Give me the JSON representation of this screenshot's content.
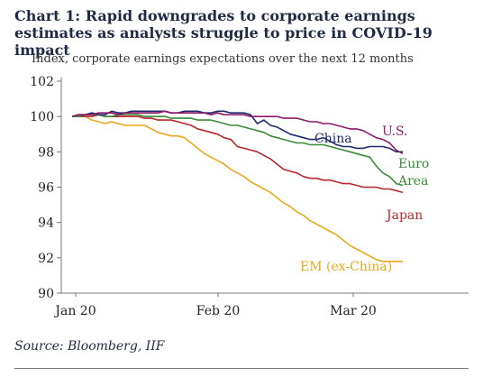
{
  "chart_data": {
    "type": "line",
    "title": "Chart 1: Rapid downgrades to corporate earnings estimates as analysts struggle to price in COVID-19 impact",
    "subtitle": "Index, corporate earnings expectations over the next 12 months",
    "source": "Source: Bloomberg, IIF",
    "ylim": [
      90,
      102
    ],
    "yticks": [
      90,
      92,
      94,
      96,
      98,
      100,
      102
    ],
    "xtick_labels": [
      "Jan 20",
      "Feb 20",
      "Mar 20"
    ],
    "grid": false,
    "x": [
      0,
      2,
      4,
      6,
      8,
      10,
      12,
      14,
      16,
      18,
      20,
      22,
      24,
      26,
      28,
      30,
      32,
      34,
      36,
      38,
      40,
      42,
      44,
      46,
      48,
      50,
      52,
      54,
      56,
      58,
      60,
      62,
      64,
      66,
      68,
      70,
      72,
      74,
      76,
      78,
      80,
      82,
      84,
      86,
      88,
      90,
      92,
      94,
      96,
      98,
      100
    ],
    "series": [
      {
        "name": "U.S.",
        "color": "#8b1a6b",
        "label": [
          "U.S."
        ],
        "values": [
          100,
          100.1,
          100.1,
          100.1,
          100.2,
          100.2,
          100.2,
          100.1,
          100.2,
          100.2,
          100.2,
          100.2,
          100.2,
          100.2,
          100.3,
          100.2,
          100.2,
          100.2,
          100.2,
          100.2,
          100.2,
          100.1,
          100.2,
          100.1,
          100.1,
          100.1,
          100.1,
          100.0,
          100.0,
          100.0,
          100.0,
          100.0,
          99.9,
          99.9,
          99.9,
          99.8,
          99.7,
          99.7,
          99.6,
          99.6,
          99.5,
          99.4,
          99.3,
          99.3,
          99.2,
          99.0,
          98.8,
          98.7,
          98.5,
          98.1,
          97.9
        ]
      },
      {
        "name": "China",
        "color": "#1f2a6b",
        "label": [
          "China"
        ],
        "values": [
          100,
          100.1,
          100.1,
          100.2,
          100.1,
          100.1,
          100.3,
          100.2,
          100.2,
          100.3,
          100.3,
          100.3,
          100.3,
          100.3,
          100.3,
          100.2,
          100.2,
          100.3,
          100.3,
          100.3,
          100.2,
          100.2,
          100.3,
          100.3,
          100.2,
          100.2,
          100.2,
          100.1,
          99.6,
          99.8,
          99.5,
          99.4,
          99.2,
          99.0,
          98.9,
          98.8,
          98.7,
          98.7,
          98.8,
          98.6,
          98.4,
          98.3,
          98.3,
          98.2,
          98.2,
          98.3,
          98.3,
          98.3,
          98.2,
          98.0,
          98.0
        ]
      },
      {
        "name": "Euro Area",
        "color": "#3a8a3a",
        "label": [
          "Euro",
          "Area"
        ],
        "values": [
          100,
          100.0,
          100.1,
          100.1,
          100.1,
          100.0,
          100.0,
          100.1,
          100.1,
          100.1,
          100.1,
          100.0,
          100.0,
          100.0,
          100.0,
          99.9,
          99.9,
          99.9,
          99.9,
          99.8,
          99.8,
          99.8,
          99.7,
          99.6,
          99.5,
          99.5,
          99.4,
          99.3,
          99.2,
          99.1,
          98.9,
          98.8,
          98.7,
          98.6,
          98.5,
          98.5,
          98.4,
          98.4,
          98.4,
          98.3,
          98.2,
          98.1,
          98.0,
          97.9,
          97.8,
          97.7,
          97.2,
          96.8,
          96.6,
          96.2,
          96.1
        ]
      },
      {
        "name": "Japan",
        "color": "#b8252a",
        "label": [
          "Japan"
        ],
        "values": [
          100,
          100.0,
          100.0,
          100.0,
          100.1,
          100.0,
          100.0,
          100.0,
          100.0,
          100.0,
          100.0,
          99.9,
          99.9,
          99.8,
          99.8,
          99.8,
          99.7,
          99.6,
          99.5,
          99.3,
          99.2,
          99.1,
          99.0,
          98.8,
          98.7,
          98.3,
          98.2,
          98.1,
          98.0,
          97.8,
          97.6,
          97.3,
          97.0,
          96.9,
          96.8,
          96.6,
          96.5,
          96.5,
          96.4,
          96.4,
          96.3,
          96.2,
          96.2,
          96.1,
          96.0,
          96.0,
          96.0,
          95.9,
          95.9,
          95.8,
          95.7
        ]
      },
      {
        "name": "EM (ex-China)",
        "color": "#e8a81c",
        "label": [
          "EM (ex-China)"
        ],
        "values": [
          100,
          100.0,
          100.0,
          99.8,
          99.7,
          99.6,
          99.7,
          99.6,
          99.5,
          99.5,
          99.5,
          99.5,
          99.3,
          99.1,
          99.0,
          98.9,
          98.9,
          98.8,
          98.5,
          98.2,
          97.9,
          97.7,
          97.5,
          97.3,
          97.0,
          96.8,
          96.6,
          96.3,
          96.1,
          95.9,
          95.7,
          95.4,
          95.1,
          94.9,
          94.6,
          94.4,
          94.1,
          93.9,
          93.7,
          93.5,
          93.3,
          93.0,
          92.7,
          92.5,
          92.3,
          92.1,
          91.9,
          91.8,
          91.8,
          91.8,
          91.8
        ]
      }
    ]
  }
}
